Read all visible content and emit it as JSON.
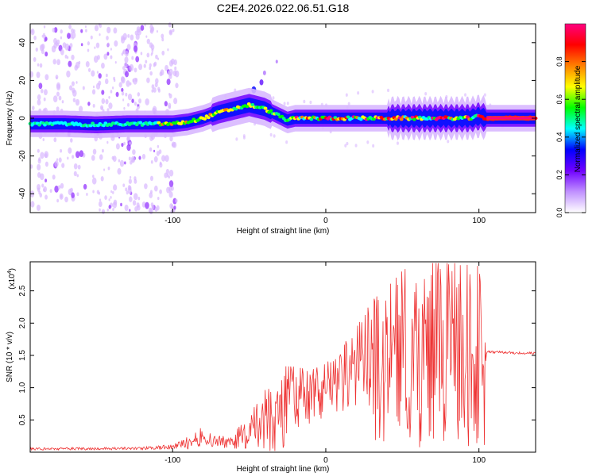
{
  "title": "C2E4.2026.022.06.51.G18",
  "chart_data": [
    {
      "type": "heatmap",
      "xlabel": "Height of straight line (km)",
      "ylabel": "Frequency (Hz)",
      "xlim": [
        -193,
        137
      ],
      "ylim": [
        -50,
        50
      ],
      "xticks": [
        -100,
        0,
        100
      ],
      "yticks": [
        -40,
        -20,
        0,
        20,
        40
      ],
      "colorbar": {
        "label": "Normalized spectral amplitude",
        "range": [
          0,
          1
        ],
        "ticks": [
          "0.0",
          "0.2",
          "0.4",
          "0.6",
          "0.8"
        ],
        "colors": [
          "#ffffff",
          "#c090ff",
          "#7000ff",
          "#0000ff",
          "#00ffff",
          "#00ff00",
          "#ffff00",
          "#ff8000",
          "#ff0000",
          "#ff0080"
        ]
      },
      "ridge": {
        "x": [
          -193,
          -170,
          -150,
          -130,
          -115,
          -100,
          -90,
          -80,
          -70,
          -60,
          -55,
          -50,
          -45,
          -40,
          -35,
          -30,
          -25,
          -20,
          -10,
          0,
          10,
          20,
          30,
          40,
          50,
          60,
          70,
          80,
          90,
          95,
          100,
          105,
          137
        ],
        "y": [
          -3,
          -3,
          -3.5,
          -3,
          -3,
          -3,
          -2,
          0,
          3,
          5,
          6,
          7,
          6,
          5,
          3,
          1,
          -1,
          0,
          0,
          0,
          0,
          0,
          0,
          0,
          0,
          0,
          0,
          0,
          0,
          0,
          1,
          0,
          0
        ]
      }
    },
    {
      "type": "line",
      "xlabel": "Height of straight line (km)",
      "ylabel": "SNR (10 * v/v)",
      "multiplier": "(x10",
      "multiplier_exp": "4",
      "multiplier_close": ")",
      "xlim": [
        -193,
        137
      ],
      "ylim": [
        0,
        2.95
      ],
      "xticks": [
        -100,
        0,
        100
      ],
      "yticks": [
        "0.5",
        "1.0",
        "1.5",
        "2.0",
        "2.5"
      ],
      "color": "#ee3333",
      "envelope": {
        "x": [
          -193,
          -120,
          -100,
          -90,
          -80,
          -70,
          -60,
          -50,
          -40,
          -30,
          -20,
          -10,
          0,
          10,
          20,
          30,
          40,
          50,
          60,
          70,
          80,
          90,
          100,
          105,
          110,
          137
        ],
        "mean": [
          0.05,
          0.06,
          0.08,
          0.15,
          0.25,
          0.15,
          0.2,
          0.3,
          0.45,
          0.6,
          0.8,
          0.85,
          0.95,
          1.1,
          1.3,
          1.4,
          1.5,
          1.55,
          1.6,
          1.6,
          1.6,
          1.6,
          1.5,
          1.55,
          1.55,
          1.53
        ],
        "spread": [
          0.02,
          0.02,
          0.04,
          0.1,
          0.15,
          0.1,
          0.15,
          0.3,
          0.5,
          0.7,
          0.5,
          0.4,
          0.4,
          0.5,
          0.6,
          0.9,
          1.0,
          1.2,
          1.3,
          1.4,
          1.4,
          1.4,
          1.3,
          0.02,
          0.02,
          0.02
        ]
      }
    }
  ]
}
